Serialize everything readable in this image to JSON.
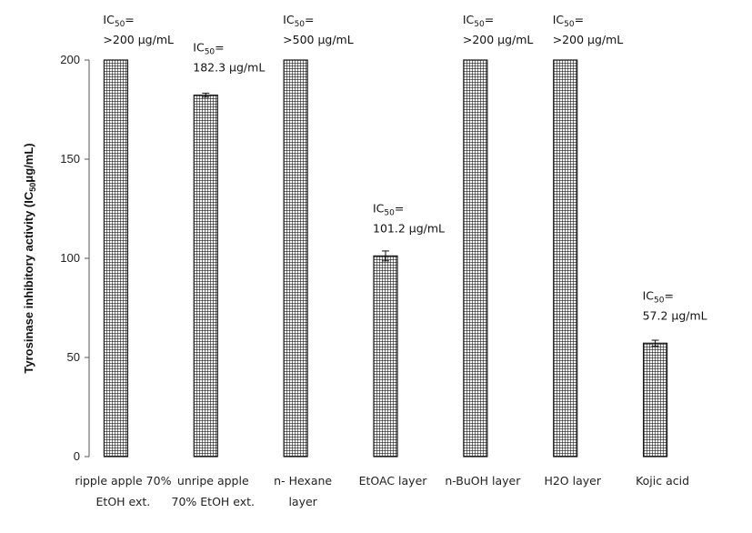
{
  "chart_data": {
    "type": "bar",
    "categories": [
      [
        "ripple apple  70%",
        "EtOH ext."
      ],
      [
        "unripe apple",
        "70% EtOH ext."
      ],
      [
        "n- Hexane",
        "layer"
      ],
      [
        "EtOAC layer"
      ],
      [
        "n-BuOH layer"
      ],
      [
        "H2O layer"
      ],
      [
        "Kojic acid"
      ]
    ],
    "values": [
      200,
      182.3,
      200,
      101.2,
      200,
      200,
      57.2
    ],
    "errors": [
      0,
      1,
      0,
      2.5,
      0,
      0,
      1.5
    ],
    "annotations": [
      {
        "prefix": "IC",
        "sub": "50",
        "suffix": "=",
        "value": ">200 μg/mL"
      },
      {
        "prefix": "IC",
        "sub": "50",
        "suffix": "=",
        "value": "182.3 μg/mL"
      },
      {
        "prefix": "IC",
        "sub": "50",
        "suffix": "=",
        "value": ">500 μg/mL"
      },
      {
        "prefix": "IC",
        "sub": "50",
        "suffix": "=",
        "value": "101.2 μg/mL"
      },
      {
        "prefix": "IC",
        "sub": "50",
        "suffix": "=",
        "value": ">200 μg/mL"
      },
      {
        "prefix": "IC",
        "sub": "50",
        "suffix": "=",
        "value": ">200 μg/mL"
      },
      {
        "prefix": "IC",
        "sub": "50",
        "suffix": "=",
        "value": "57.2 μg/mL"
      }
    ],
    "ylabel": "Tyrosinase inhibitory activity (IC50 μg/mL)",
    "ylabel_parts": {
      "before": "Tyrosinase inhibitory activity (IC",
      "sub": "50",
      "after": "μg/mL)"
    },
    "yticks": [
      0,
      50,
      100,
      150,
      200
    ],
    "ylim": [
      0,
      200
    ],
    "grid": false,
    "bar_pattern": "crosshatch",
    "bar_color": "#1a1a1a"
  }
}
